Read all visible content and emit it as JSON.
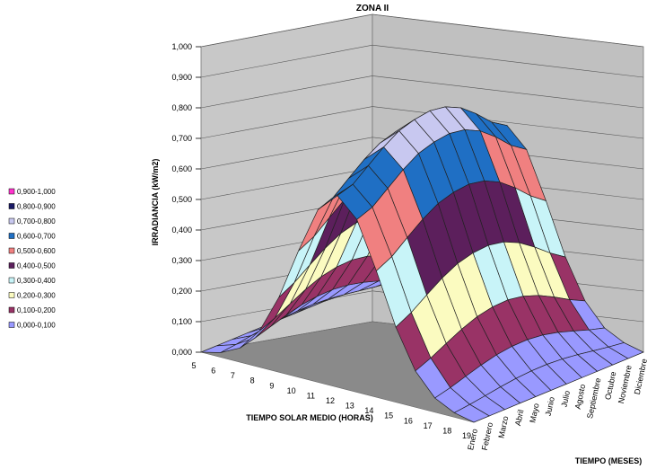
{
  "chart_data": {
    "type": "surface",
    "title": "ZONA II",
    "zlabel": "IRRADIANCIA (kW/m2)",
    "xlabel": "TIEMPO SOLAR MEDIO (HORAS)",
    "ylabel": "TIEMPO (MESES)",
    "zlim": [
      0,
      1.0
    ],
    "z_ticks": [
      "0,000",
      "0,100",
      "0,200",
      "0,300",
      "0,400",
      "0,500",
      "0,600",
      "0,700",
      "0,800",
      "0,900",
      "1,000"
    ],
    "hours": [
      5,
      6,
      7,
      8,
      9,
      10,
      11,
      12,
      13,
      14,
      15,
      16,
      17,
      18,
      19
    ],
    "months": [
      "Enero",
      "Febrero",
      "Marzo",
      "Abril",
      "Mayo",
      "Junio",
      "Julio",
      "Agosto",
      "Septiembre",
      "Octubre",
      "Noviembre",
      "Diciembre"
    ],
    "peak_irradiance": 0.78,
    "legend": {
      "placement": "left",
      "entries": [
        {
          "label": "0,900-1,000",
          "color": "#ff33cc"
        },
        {
          "label": "0,800-0,900",
          "color": "#1a1a66"
        },
        {
          "label": "0,700-0,800",
          "color": "#c8c8f0"
        },
        {
          "label": "0,600-0,700",
          "color": "#1f6fc4"
        },
        {
          "label": "0,500-0,600",
          "color": "#f08080"
        },
        {
          "label": "0,400-0,500",
          "color": "#5c1f5c"
        },
        {
          "label": "0,300-0,400",
          "color": "#c8f4f8"
        },
        {
          "label": "0,200-0,300",
          "color": "#fbfbc0"
        },
        {
          "label": "0,100-0,200",
          "color": "#993366"
        },
        {
          "label": "0,000-0,100",
          "color": "#9999ff"
        }
      ]
    },
    "grid": true
  }
}
